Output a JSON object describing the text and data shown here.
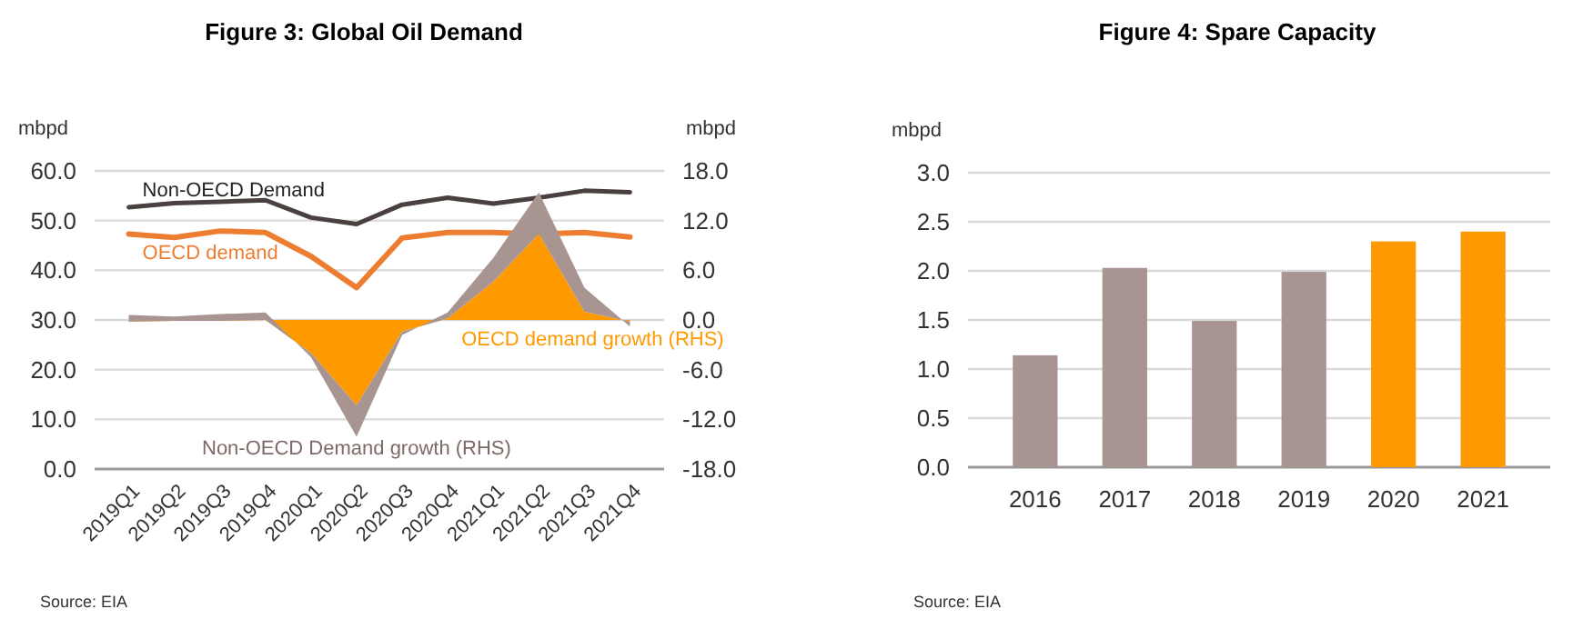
{
  "chart_data": [
    {
      "type": "line",
      "title": "Figure 3: Global Oil Demand",
      "ylabel": "mbpd",
      "y2label": "mbpd",
      "categories": [
        "2019Q1",
        "2019Q2",
        "2019Q3",
        "2019Q4",
        "2020Q1",
        "2020Q2",
        "2020Q3",
        "2020Q4",
        "2021Q1",
        "2021Q2",
        "2021Q3",
        "2021Q4"
      ],
      "series": [
        {
          "name": "Non-OECD Demand",
          "type": "line",
          "axis": "y",
          "color": "#4a4040",
          "values": [
            52.7,
            53.5,
            53.8,
            54.1,
            50.6,
            49.3,
            53.2,
            54.6,
            53.4,
            54.6,
            56.0,
            55.7
          ]
        },
        {
          "name": "OECD demand",
          "type": "line",
          "axis": "y",
          "color": "#ed7d31",
          "values": [
            47.3,
            46.6,
            47.9,
            47.6,
            42.8,
            36.5,
            46.5,
            47.6,
            47.6,
            47.3,
            47.6,
            46.7
          ]
        },
        {
          "name": "OECD demand growth (RHS)",
          "type": "area",
          "axis": "y2",
          "color": "#ff9900",
          "values": [
            -0.2,
            -0.1,
            -0.1,
            0.0,
            -4.0,
            -10.3,
            -1.4,
            0.2,
            4.6,
            10.4,
            1.0,
            -0.2
          ]
        },
        {
          "name": "Non-OECD Demand growth (RHS)",
          "type": "area",
          "axis": "y2",
          "color": "#a89591",
          "values": [
            0.8,
            0.5,
            0.8,
            0.9,
            -0.5,
            -3.8,
            -0.4,
            0.7,
            2.9,
            5.0,
            2.9,
            -0.6
          ]
        }
      ],
      "stacked": true,
      "ylim": [
        0,
        60
      ],
      "yticks": [
        {
          "value": 0,
          "label": "0.0"
        },
        {
          "value": 10,
          "label": "10.0"
        },
        {
          "value": 20,
          "label": "20.0"
        },
        {
          "value": 30,
          "label": "30.0"
        },
        {
          "value": 40,
          "label": "40.0"
        },
        {
          "value": 50,
          "label": "50.0"
        },
        {
          "value": 60,
          "label": "60.0"
        }
      ],
      "y2lim": [
        -18,
        18
      ],
      "y2ticks": [
        {
          "value": -18,
          "label": "-18.0"
        },
        {
          "value": -12,
          "label": "-12.0"
        },
        {
          "value": -6,
          "label": "-6.0"
        },
        {
          "value": 0,
          "label": "0.0"
        },
        {
          "value": 6,
          "label": "6.0"
        },
        {
          "value": 12,
          "label": "12.0"
        },
        {
          "value": 18,
          "label": "18.0"
        }
      ],
      "grid": "y",
      "annotations": [
        "Source: EIA"
      ]
    },
    {
      "type": "bar",
      "title": "Figure 4: Spare Capacity",
      "ylabel": "mbpd",
      "categories": [
        "2016",
        "2017",
        "2018",
        "2019",
        "2020",
        "2021"
      ],
      "values": [
        1.14,
        2.03,
        1.49,
        1.99,
        2.3,
        2.4
      ],
      "colors": [
        "#a89591",
        "#a89591",
        "#a89591",
        "#a89591",
        "#ff9900",
        "#ff9900"
      ],
      "ylim": [
        0,
        3
      ],
      "yticks": [
        {
          "value": 0,
          "label": "0.0"
        },
        {
          "value": 0.5,
          "label": "0.5"
        },
        {
          "value": 1,
          "label": "1.0"
        },
        {
          "value": 1.5,
          "label": "1.5"
        },
        {
          "value": 2,
          "label": "2.0"
        },
        {
          "value": 2.5,
          "label": "2.5"
        },
        {
          "value": 3,
          "label": "3.0"
        }
      ],
      "grid": "y",
      "annotations": [
        "Source: EIA"
      ]
    }
  ]
}
